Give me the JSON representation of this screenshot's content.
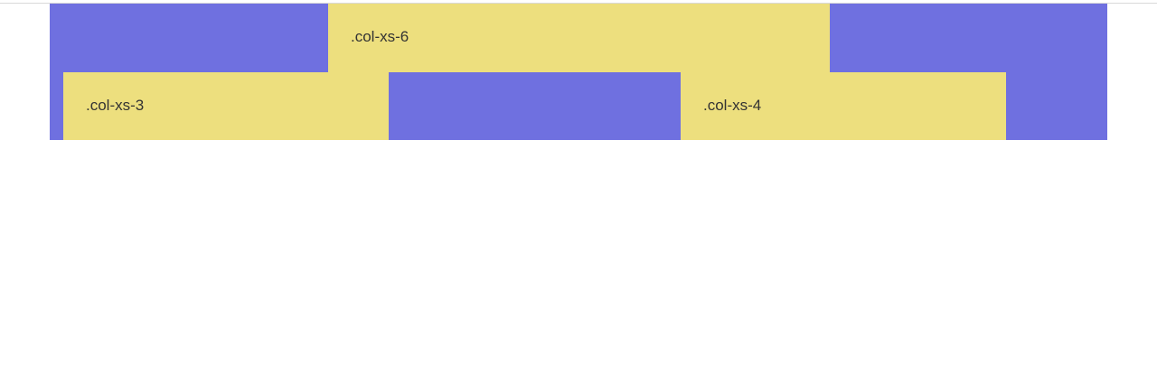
{
  "colors": {
    "row_bg": "#6f70e0",
    "col_bg": "#eddf7e",
    "text": "#333333"
  },
  "rows": [
    {
      "columns": [
        {
          "label": "",
          "color": "#6f70e0"
        },
        {
          "label": ".col-xs-6",
          "color": "#eddf7e"
        },
        {
          "label": "",
          "color": "#6f70e0"
        }
      ]
    },
    {
      "columns": [
        {
          "label": "",
          "color": "#6f70e0"
        },
        {
          "label": ".col-xs-3",
          "color": "#eddf7e"
        },
        {
          "label": "",
          "color": "#6f70e0"
        },
        {
          "label": ".col-xs-4",
          "color": "#eddf7e"
        },
        {
          "label": "",
          "color": "#6f70e0"
        }
      ]
    }
  ]
}
